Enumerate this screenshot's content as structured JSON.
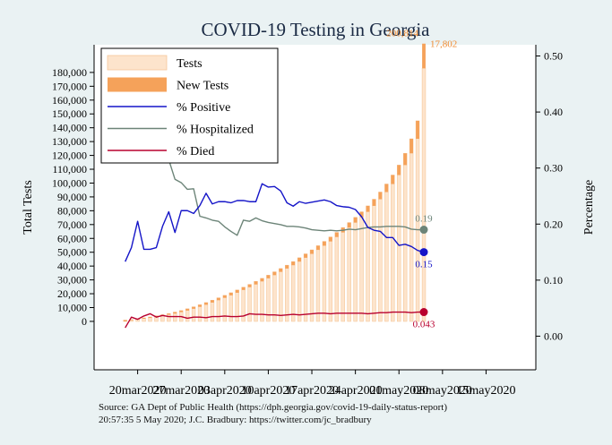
{
  "chart_data": {
    "type": "bar",
    "title": "COVID-19 Testing in Georgia",
    "ylabel": "Total Tests",
    "ylabel_right": "Percentage",
    "source_line1": "Source: GA Dept of Public Health (https://dph.georgia.gov/covid-19-daily-status-report)",
    "source_line2": "20:57:35    5 May 2020; J.C. Bradbury: https://twitter.com/jc_bradbury",
    "xlim": [
      "2020-03-13",
      "2020-05-23"
    ],
    "ylim_left": [
      -35000,
      200000
    ],
    "ylim_right": [
      -0.06,
      0.52
    ],
    "y_ticks_left": [
      0,
      10000,
      20000,
      30000,
      40000,
      50000,
      60000,
      70000,
      80000,
      90000,
      100000,
      110000,
      120000,
      130000,
      140000,
      150000,
      160000,
      170000,
      180000
    ],
    "y_tick_labels_left": [
      "0",
      "10,000",
      "20,000",
      "30,000",
      "40,000",
      "50,000",
      "60,000",
      "70,000",
      "80,000",
      "90,000",
      "100,000",
      "110,000",
      "120,000",
      "130,000",
      "140,000",
      "150,000",
      "160,000",
      "170,000",
      "180,000"
    ],
    "y_ticks_right": [
      0.0,
      0.1,
      0.2,
      0.3,
      0.4,
      0.5
    ],
    "y_tick_labels_right": [
      "0.00",
      "0.10",
      "0.20",
      "0.30",
      "0.40",
      "0.50"
    ],
    "x_tick_dates": [
      "2020-03-20",
      "2020-03-27",
      "2020-04-03",
      "2020-04-10",
      "2020-04-17",
      "2020-04-24",
      "2020-05-01",
      "2020-05-08",
      "2020-05-15"
    ],
    "x_tick_labels": [
      "20mar2020",
      "27mar2020",
      "03apr2020",
      "10apr2020",
      "17apr2020",
      "24apr2020",
      "01may2020",
      "08may2020",
      "15may2020"
    ],
    "dates": [
      "2020-03-18",
      "2020-03-19",
      "2020-03-20",
      "2020-03-21",
      "2020-03-22",
      "2020-03-23",
      "2020-03-24",
      "2020-03-25",
      "2020-03-26",
      "2020-03-27",
      "2020-03-28",
      "2020-03-29",
      "2020-03-30",
      "2020-03-31",
      "2020-04-01",
      "2020-04-02",
      "2020-04-03",
      "2020-04-04",
      "2020-04-05",
      "2020-04-06",
      "2020-04-07",
      "2020-04-08",
      "2020-04-09",
      "2020-04-10",
      "2020-04-11",
      "2020-04-12",
      "2020-04-13",
      "2020-04-14",
      "2020-04-15",
      "2020-04-16",
      "2020-04-17",
      "2020-04-18",
      "2020-04-19",
      "2020-04-20",
      "2020-04-21",
      "2020-04-22",
      "2020-04-23",
      "2020-04-24",
      "2020-04-25",
      "2020-04-26",
      "2020-04-27",
      "2020-04-28",
      "2020-04-29",
      "2020-04-30",
      "2020-05-01",
      "2020-05-02",
      "2020-05-03",
      "2020-05-04",
      "2020-05-05"
    ],
    "series": [
      {
        "name": "Tests",
        "axis": "left",
        "color": "#fde4cc",
        "values": [
          900,
          1300,
          1900,
          2500,
          3200,
          4000,
          4800,
          5600,
          6700,
          7800,
          9100,
          10500,
          12000,
          13600,
          15300,
          17000,
          18800,
          20700,
          22700,
          24700,
          26700,
          28900,
          31100,
          33400,
          35800,
          38200,
          40600,
          43200,
          46000,
          48800,
          51700,
          54700,
          57800,
          61000,
          64300,
          67800,
          71400,
          75200,
          79200,
          83500,
          88300,
          93500,
          99300,
          105800,
          113000,
          121500,
          132000,
          145000,
          183012
        ]
      },
      {
        "name": "New Tests",
        "axis": "left",
        "color": "#f5a25a",
        "values": [
          900,
          400,
          600,
          600,
          700,
          800,
          800,
          800,
          1100,
          1100,
          1300,
          1400,
          1500,
          1600,
          1700,
          1700,
          1800,
          1900,
          2000,
          2000,
          2000,
          2200,
          2200,
          2300,
          2400,
          2400,
          2400,
          2600,
          2800,
          2800,
          2900,
          3000,
          3100,
          3200,
          3300,
          3500,
          3600,
          3800,
          4000,
          4300,
          4800,
          5200,
          5800,
          6500,
          7200,
          8500,
          10500,
          13000,
          17802
        ]
      },
      {
        "name": "% Positive",
        "axis": "right",
        "color": "#1515c8",
        "values": [
          0.133,
          0.158,
          0.205,
          0.155,
          0.155,
          0.158,
          0.196,
          0.222,
          0.185,
          0.224,
          0.224,
          0.219,
          0.233,
          0.255,
          0.236,
          0.24,
          0.24,
          0.238,
          0.242,
          0.242,
          0.24,
          0.24,
          0.272,
          0.266,
          0.267,
          0.259,
          0.238,
          0.232,
          0.24,
          0.237,
          0.239,
          0.241,
          0.243,
          0.24,
          0.233,
          0.231,
          0.23,
          0.226,
          0.213,
          0.194,
          0.189,
          0.187,
          0.176,
          0.176,
          0.162,
          0.164,
          0.16,
          0.153,
          0.15
        ]
      },
      {
        "name": "% Hospitalized",
        "axis": "right",
        "color": "#6c8478",
        "values": [
          null,
          null,
          null,
          null,
          null,
          0.333,
          0.32,
          0.315,
          0.28,
          0.274,
          0.262,
          0.263,
          0.214,
          0.211,
          0.207,
          0.205,
          0.195,
          0.187,
          0.18,
          0.207,
          0.205,
          0.211,
          0.206,
          0.203,
          0.201,
          0.199,
          0.196,
          0.196,
          0.195,
          0.193,
          0.19,
          0.189,
          0.188,
          0.189,
          0.188,
          0.189,
          0.191,
          0.19,
          0.192,
          0.194,
          0.195,
          0.195,
          0.196,
          0.196,
          0.196,
          0.195,
          0.191,
          0.19,
          0.19
        ]
      },
      {
        "name": "% Died",
        "axis": "right",
        "color": "#b8002e",
        "values": [
          0.015,
          0.034,
          0.03,
          0.036,
          0.04,
          0.034,
          0.037,
          0.035,
          0.035,
          0.035,
          0.032,
          0.034,
          0.034,
          0.033,
          0.035,
          0.035,
          0.036,
          0.035,
          0.035,
          0.036,
          0.04,
          0.039,
          0.039,
          0.038,
          0.038,
          0.037,
          0.038,
          0.039,
          0.038,
          0.039,
          0.04,
          0.041,
          0.041,
          0.04,
          0.041,
          0.041,
          0.041,
          0.041,
          0.041,
          0.04,
          0.041,
          0.042,
          0.042,
          0.043,
          0.043,
          0.043,
          0.042,
          0.043,
          0.043
        ]
      }
    ],
    "annotations": [
      {
        "text": "200,814",
        "series": "Tests",
        "color": "#f08a30"
      },
      {
        "text": "17,802",
        "series": "New Tests",
        "color": "#f08a30"
      },
      {
        "text": "0.19",
        "series": "% Hospitalized",
        "color": "#6c8478"
      },
      {
        "text": "0.15",
        "series": "% Positive",
        "color": "#1515c8"
      },
      {
        "text": "0.043",
        "series": "% Died",
        "color": "#b8002e"
      }
    ],
    "legend": "top-left",
    "grid": false
  }
}
